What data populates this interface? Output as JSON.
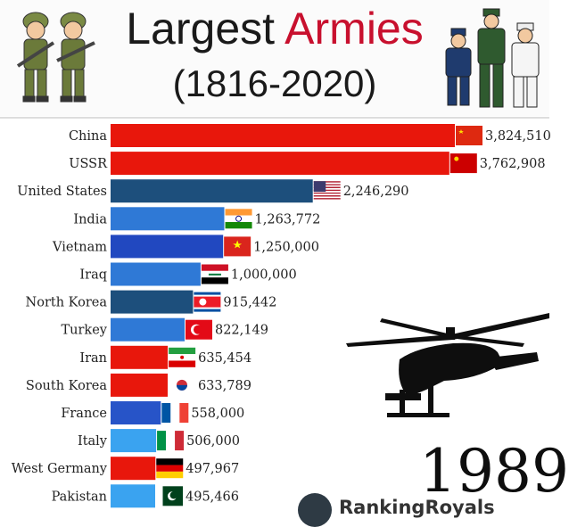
{
  "header": {
    "title_part1": "Largest",
    "title_part2": "Armies",
    "subtitle": "(1816-2020)"
  },
  "chart_data": {
    "type": "bar",
    "orientation": "horizontal",
    "title": "Largest Armies",
    "subtitle": "(1816-2020)",
    "year": "1989",
    "xlim": [
      0,
      3824510
    ],
    "categories": [
      "China",
      "USSR",
      "United States",
      "India",
      "Vietnam",
      "Iraq",
      "North Korea",
      "Turkey",
      "Iran",
      "South Korea",
      "France",
      "Italy",
      "West Germany",
      "Pakistan"
    ],
    "values": [
      3824510,
      3762908,
      2246290,
      1263772,
      1250000,
      1000000,
      915442,
      822149,
      635454,
      633789,
      558000,
      506000,
      497967,
      495466
    ],
    "value_labels": [
      "3,824,510",
      "3,762,908",
      "2,246,290",
      "1,263,772",
      "1,250,000",
      "1,000,000",
      "915,442",
      "822,149",
      "635,454",
      "633,789",
      "558,000",
      "506,000",
      "497,967",
      "495,466"
    ],
    "bar_colors": [
      "#e8170c",
      "#e8170c",
      "#1d4f7c",
      "#2f79d6",
      "#2148c0",
      "#2f79d6",
      "#1d4f7c",
      "#2f79d6",
      "#e8170c",
      "#e8170c",
      "#2754c8",
      "#3aa3f0",
      "#e8170c",
      "#3aa3f0"
    ],
    "flags": [
      "china-flag",
      "ussr-flag",
      "usa-flag",
      "india-flag",
      "vietnam-flag",
      "iraq-flag",
      "north-korea-flag",
      "turkey-flag",
      "iran-flag",
      "south-korea-flag",
      "france-flag",
      "italy-flag",
      "west-germany-flag",
      "pakistan-flag"
    ]
  },
  "year_label": "1989",
  "brand": {
    "text": "RankingRoyals",
    "logo": "globe-logo-icon"
  },
  "decorations": [
    "soldiers-left-icon",
    "soldiers-right-icon",
    "helicopter-icon"
  ]
}
